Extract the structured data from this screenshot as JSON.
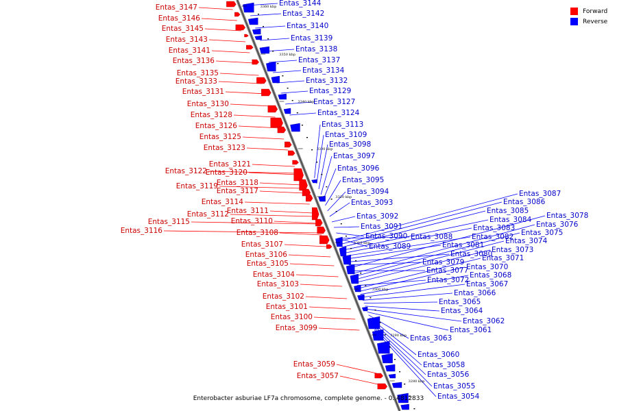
{
  "legend": {
    "forward_label": "Forward",
    "reverse_label": "Reverse",
    "forward_color": "#ff0000",
    "reverse_color": "#0000ff"
  },
  "caption": "Enterobacter asburiae LF7a chromosome, complete genome. - 0..4812833",
  "scale_ticks": [
    "3360 kbp",
    "3350 kbp",
    "3340 kbp",
    "3330 kbp",
    "3320 kbp",
    "3310 kbp",
    "3300 kbp",
    "3290 kbp",
    "3280 kbp"
  ],
  "forward_labels": [
    "Entas_3147",
    "Entas_3146",
    "Entas_3145",
    "Entas_3143",
    "Entas_3141",
    "Entas_3136",
    "Entas_3135",
    "Entas_3133",
    "Entas_3131",
    "Entas_3130",
    "Entas_3128",
    "Entas_3126",
    "Entas_3125",
    "Entas_3123",
    "Entas_3121",
    "Entas_3122",
    "Entas_3120",
    "Entas_3118",
    "Entas_3119",
    "Entas_3117",
    "Entas_3114",
    "Entas_3111",
    "Entas_3112",
    "Entas_3110",
    "Entas_3115",
    "Entas_3116",
    "Entas_3108",
    "Entas_3107",
    "Entas_3106",
    "Entas_3105",
    "Entas_3104",
    "Entas_3103",
    "Entas_3102",
    "Entas_3101",
    "Entas_3100",
    "Entas_3099",
    "Entas_3059",
    "Entas_3057"
  ],
  "reverse_labels": [
    "Entas_3144",
    "Entas_3142",
    "Entas_3140",
    "Entas_3139",
    "Entas_3138",
    "Entas_3137",
    "Entas_3134",
    "Entas_3132",
    "Entas_3129",
    "Entas_3127",
    "Entas_3124",
    "Entas_3113",
    "Entas_3109",
    "Entas_3098",
    "Entas_3097",
    "Entas_3096",
    "Entas_3095",
    "Entas_3094",
    "Entas_3093",
    "Entas_3092",
    "Entas_3091",
    "Entas_3090",
    "Entas_3089",
    "Entas_3088",
    "Entas_3087",
    "Entas_3086",
    "Entas_3085",
    "Entas_3084",
    "Entas_3083",
    "Entas_3082",
    "Entas_3081",
    "Entas_3080",
    "Entas_3079",
    "Entas_3078",
    "Entas_3077",
    "Entas_3076",
    "Entas_3075",
    "Entas_3074",
    "Entas_3073",
    "Entas_3072",
    "Entas_3071",
    "Entas_3070",
    "Entas_3068",
    "Entas_3067",
    "Entas_3066",
    "Entas_3065",
    "Entas_3064",
    "Entas_3062",
    "Entas_3061",
    "Entas_3063",
    "Entas_3060",
    "Entas_3058",
    "Entas_3056",
    "Entas_3055",
    "Entas_3054"
  ]
}
